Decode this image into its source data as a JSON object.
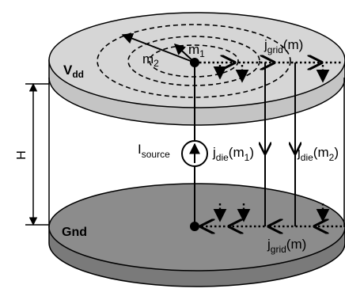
{
  "labels": {
    "vdd_main": "V",
    "vdd_sub": "dd",
    "gnd": "Gnd",
    "height": "H",
    "m1_main": "m",
    "m1_sub": "1",
    "m2_main": "m",
    "m2_sub": "2",
    "isource_main": "I",
    "isource_sub": "source",
    "jdie1_main": "j",
    "jdie1_sub": "die",
    "jdie1_arg_open": "(m",
    "jdie1_arg_sub": "1",
    "jdie1_arg_close": ")",
    "jdie2_main": "j",
    "jdie2_sub": "die",
    "jdie2_arg_open": "(m",
    "jdie2_arg_sub": "2",
    "jdie2_arg_close": ")",
    "jgrid_top_main": "j",
    "jgrid_top_sub": "grid",
    "jgrid_top_arg": "(m)",
    "jgrid_bottom_main": "j",
    "jgrid_bottom_sub": "grid",
    "jgrid_bottom_arg": "(m)"
  },
  "colors": {
    "top_plate": "#d6d6d6",
    "bottom_plate": "#8c8c8c",
    "plate_edge": "#c4c4c4",
    "bottom_edge": "#7a7a7a",
    "line": "#000000"
  }
}
